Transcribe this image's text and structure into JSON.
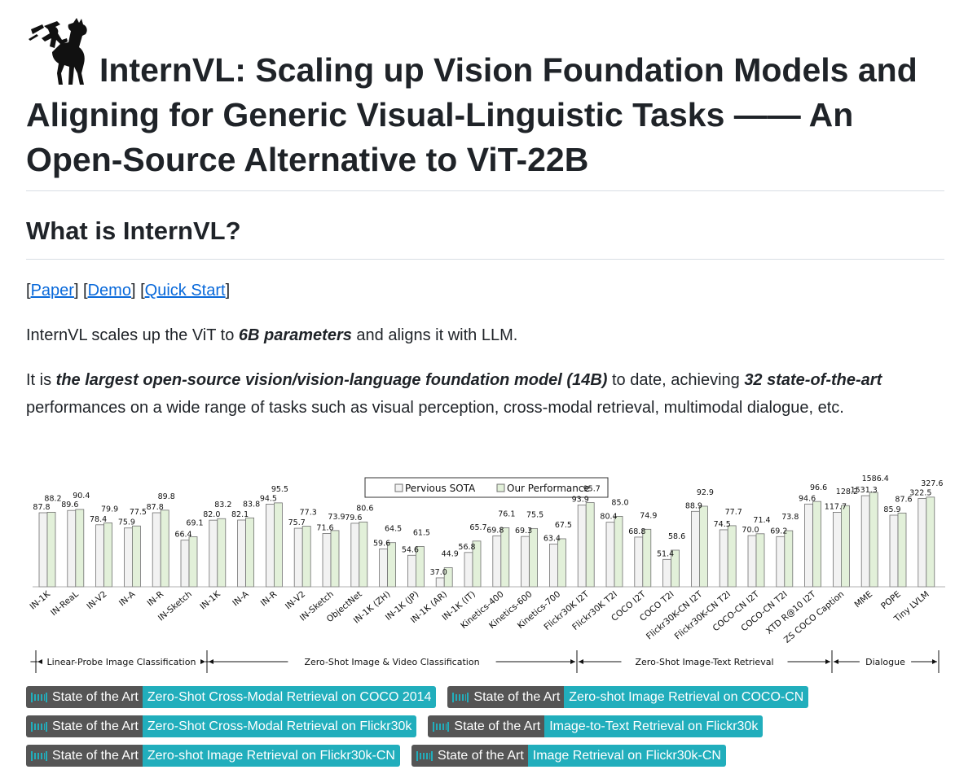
{
  "title": "InternVL: Scaling up Vision Foundation Models and Aligning for Generic Visual-Linguistic Tasks —— An Open-Source Alternative to ViT-22B",
  "section_heading": "What is InternVL?",
  "links": {
    "open1": "[",
    "paper": "Paper",
    "mid1": "] [",
    "demo": "Demo",
    "mid2": "] [",
    "quick_start": "Quick Start",
    "close": "]"
  },
  "intro": {
    "pre": "InternVL scales up the ViT to ",
    "bold": "6B parameters",
    "post": " and aligns it with LLM."
  },
  "claim": {
    "pre": "It is ",
    "bold1": "the largest open-source vision/vision-language foundation model (14B)",
    "mid": " to date, achieving ",
    "bold2": "32 state-of-the-art",
    "post": " performances on a wide range of tasks such as visual perception, cross-modal retrieval, multimodal dialogue, etc."
  },
  "chart_data": {
    "type": "bar",
    "categories": [
      "IN-1K",
      "IN-ReaL",
      "IN-V2",
      "IN-A",
      "IN-R",
      "IN-Sketch",
      "IN-1K",
      "IN-A",
      "IN-R",
      "IN-V2",
      "IN-Sketch",
      "ObjectNet",
      "IN-1K (ZH)",
      "IN-1K (JP)",
      "IN-1K (AR)",
      "IN-1K (IT)",
      "Kinetics-400",
      "Kinetics-600",
      "Kinetics-700",
      "Flickr30K I2T",
      "Flickr30K T2I",
      "COCO I2T",
      "COCO T2I",
      "Flickr30K-CN I2T",
      "Flickr30K-CN T2I",
      "COCO-CN I2T",
      "COCO-CN T2I",
      "XTD R@10 I2T",
      "ZS COCO Caption",
      "MME",
      "POPE",
      "Tiny LVLM"
    ],
    "series": [
      {
        "name": "Pervious SOTA",
        "color": "#f2f2f2",
        "values": [
          87.8,
          89.6,
          78.4,
          75.9,
          87.8,
          66.4,
          82.0,
          82.1,
          94.5,
          75.7,
          71.6,
          79.6,
          59.6,
          54.6,
          37.0,
          56.8,
          69.8,
          69.3,
          63.4,
          93.9,
          80.4,
          68.8,
          51.4,
          88.9,
          74.5,
          70.0,
          69.2,
          94.6,
          117.7,
          1531.3,
          85.9,
          322.5
        ]
      },
      {
        "name": "Our Performance",
        "color": "#e2f0d9",
        "values": [
          88.2,
          90.4,
          79.9,
          77.5,
          89.8,
          69.1,
          83.2,
          83.8,
          95.5,
          77.3,
          73.9,
          80.6,
          64.5,
          61.5,
          44.9,
          65.7,
          76.1,
          75.5,
          67.5,
          95.7,
          85.0,
          74.9,
          58.6,
          92.9,
          77.7,
          71.4,
          73.8,
          96.6,
          128.2,
          1586.4,
          87.6,
          327.6
        ]
      }
    ],
    "groups": [
      {
        "label": "Linear-Probe Image Classification",
        "from": 0,
        "to": 5
      },
      {
        "label": "Zero-Shot Image & Video Classification",
        "from": 6,
        "to": 18
      },
      {
        "label": "Zero-Shot Image-Text Retrieval",
        "from": 19,
        "to": 27
      },
      {
        "label": "Dialogue",
        "from": 28,
        "to": 31
      }
    ],
    "legend_position": "top-center",
    "grid": false
  },
  "badges": [
    [
      {
        "left": "State of the Art",
        "right": "Zero-Shot Cross-Modal Retrieval on COCO 2014"
      },
      {
        "left": "State of the Art",
        "right": "Zero-shot Image Retrieval on COCO-CN"
      }
    ],
    [
      {
        "left": "State of the Art",
        "right": "Zero-Shot Cross-Modal Retrieval on Flickr30k"
      },
      {
        "left": "State of the Art",
        "right": "Image-to-Text Retrieval on Flickr30k"
      }
    ],
    [
      {
        "left": "State of the Art",
        "right": "Zero-shot Image Retrieval on Flickr30k-CN"
      },
      {
        "left": "State of the Art",
        "right": "Image Retrieval on Flickr30k-CN"
      }
    ]
  ],
  "colors": {
    "link": "#0969da",
    "badge_left": "#555555",
    "badge_right": "#21aebc",
    "bar_edge": "#707070"
  }
}
